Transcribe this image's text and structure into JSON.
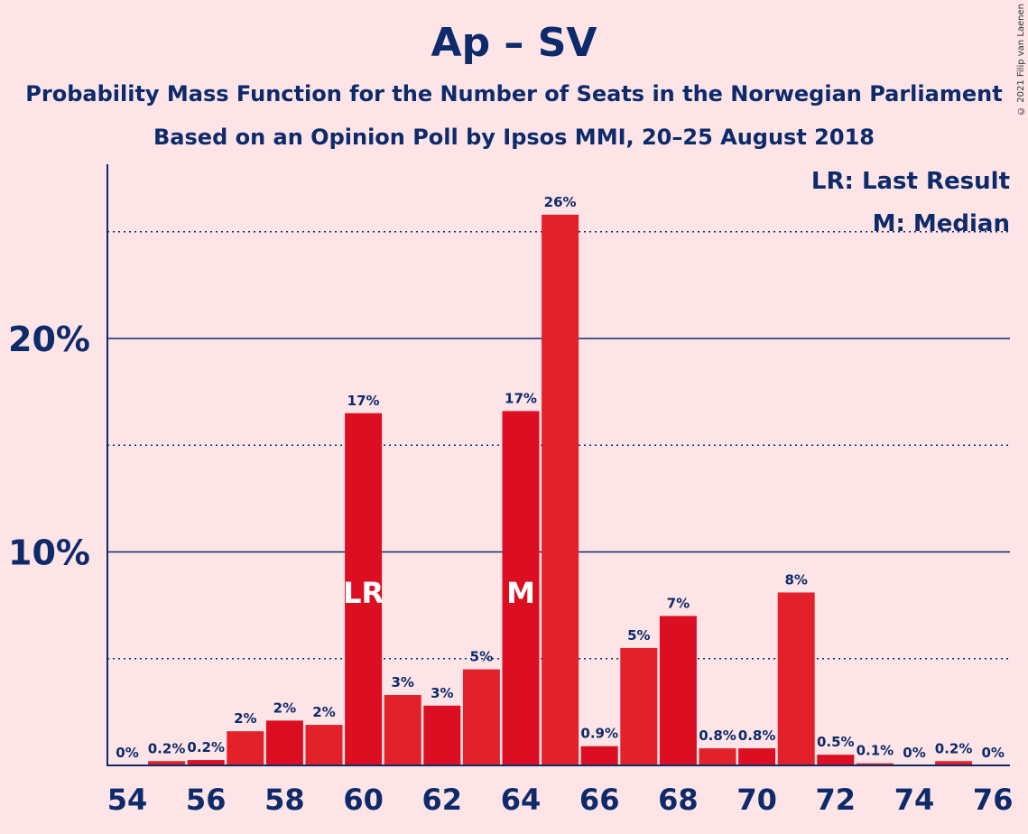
{
  "chart_data": {
    "type": "bar",
    "title": "Ap – SV",
    "subtitle": "Probability Mass Function for the Number of Seats in the Norwegian Parliament",
    "subtitle2": "Based on an Opinion Poll by Ipsos MMI, 20–25 August 2018",
    "copyright": "© 2021 Filip van Laenen",
    "legend": [
      "LR: Last Result",
      "M: Median"
    ],
    "legend_position": "top-right",
    "x": [
      54,
      55,
      56,
      57,
      58,
      59,
      60,
      61,
      62,
      63,
      64,
      65,
      66,
      67,
      68,
      69,
      70,
      71,
      72,
      73,
      74,
      75,
      76
    ],
    "values": [
      0,
      0.2,
      0.25,
      1.6,
      2.1,
      1.9,
      16.5,
      3.3,
      2.8,
      4.5,
      16.6,
      25.8,
      0.9,
      5.5,
      7.0,
      0.8,
      0.8,
      8.1,
      0.5,
      0.1,
      0,
      0.2,
      0
    ],
    "value_labels": [
      "0%",
      "0.2%",
      "0.2%",
      "2%",
      "2%",
      "2%",
      "17%",
      "3%",
      "3%",
      "5%",
      "17%",
      "26%",
      "0.9%",
      "5%",
      "7%",
      "0.8%",
      "0.8%",
      "8%",
      "0.5%",
      "0.1%",
      "0%",
      "0.2%",
      "0%"
    ],
    "x_tick_labels": [
      "54",
      "56",
      "58",
      "60",
      "62",
      "64",
      "66",
      "68",
      "70",
      "72",
      "74",
      "76"
    ],
    "y_tick_labels": [
      "10%",
      "20%"
    ],
    "y_ticks": [
      10,
      20
    ],
    "minor_gridlines": [
      5,
      15,
      25
    ],
    "ylim": [
      0,
      28
    ],
    "markers": [
      {
        "x": 60,
        "label": "LR"
      },
      {
        "x": 64,
        "label": "M"
      }
    ],
    "colors": {
      "bar_dark": "#dc0e22",
      "bar_light": "#e2212b",
      "axis": "#0d2a6b",
      "background": "#fde4e6"
    }
  }
}
